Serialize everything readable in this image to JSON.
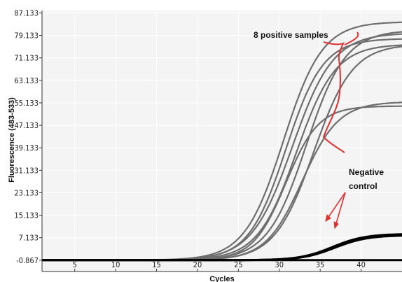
{
  "chart_data": {
    "type": "line",
    "xlabel": "Cycles",
    "ylabel": "Fluorescence (483-533)",
    "xlim": [
      1,
      45
    ],
    "ylim": [
      -4.9,
      88
    ],
    "x_ticks": [
      5,
      10,
      15,
      20,
      25,
      30,
      35,
      40
    ],
    "y_ticks": [
      -0.867,
      7.133,
      15.133,
      23.133,
      31.133,
      39.133,
      47.133,
      55.133,
      63.133,
      71.133,
      79.133,
      87.133
    ],
    "y_tick_labels": [
      "-0.867",
      "7.133",
      "15.133",
      "23.133",
      "31.133",
      "39.133",
      "47.133",
      "55.133",
      "63.133",
      "71.133",
      "79.133",
      "87.133"
    ],
    "grid": true,
    "series": [
      {
        "color": "#6e6e6e",
        "baseline": -0.87,
        "plateau": 84.0,
        "midpoint": 30.5,
        "slope": 0.42
      },
      {
        "color": "#6e6e6e",
        "baseline": -0.87,
        "plateau": 78.0,
        "midpoint": 30.8,
        "slope": 0.44
      },
      {
        "color": "#6e6e6e",
        "baseline": -0.87,
        "plateau": 80.0,
        "midpoint": 31.6,
        "slope": 0.4
      },
      {
        "color": "#6e6e6e",
        "baseline": -0.87,
        "plateau": 76.0,
        "midpoint": 32.1,
        "slope": 0.42
      },
      {
        "color": "#6e6e6e",
        "baseline": -0.87,
        "plateau": 81.0,
        "midpoint": 33.3,
        "slope": 0.42
      },
      {
        "color": "#6e6e6e",
        "baseline": -0.87,
        "plateau": 76.0,
        "midpoint": 34.2,
        "slope": 0.42
      },
      {
        "color": "#6e6e6e",
        "baseline": -0.87,
        "plateau": 54.0,
        "midpoint": 30.8,
        "slope": 0.5
      },
      {
        "color": "#6e6e6e",
        "baseline": -0.87,
        "plateau": 55.5,
        "midpoint": 32.8,
        "slope": 0.45
      },
      {
        "color": "#000000",
        "baseline": -0.87,
        "plateau": 8.5,
        "midpoint": 36.5,
        "slope": 0.5
      },
      {
        "color": "#000000",
        "baseline": -0.87,
        "plateau": 8.0,
        "midpoint": 36.8,
        "slope": 0.5
      },
      {
        "color": "#000000",
        "baseline": -0.87,
        "plateau": -0.87,
        "midpoint": 30,
        "slope": 0.5
      }
    ],
    "annotations": {
      "positive": "8 positive samples",
      "negative_line1": "Negative",
      "negative_line2": "control"
    },
    "annotation_color": "#e03030"
  }
}
